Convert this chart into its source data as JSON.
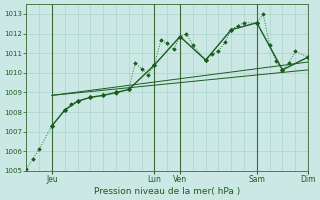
{
  "xlabel": "Pression niveau de la mer( hPa )",
  "bg_color": "#cce8e4",
  "grid_color": "#aad4cf",
  "line_dark": "#1a5c20",
  "line_mid": "#2a7a30",
  "ylim": [
    1005.0,
    1013.5
  ],
  "xlim": [
    0,
    44
  ],
  "yticks": [
    1005,
    1006,
    1007,
    1008,
    1009,
    1010,
    1011,
    1012,
    1013
  ],
  "xtick_pos": [
    4,
    20,
    24,
    36,
    44
  ],
  "xtick_labels": [
    "Jeu",
    "Lun",
    "Ven",
    "Sam",
    "Dim"
  ],
  "day_vline_pos": [
    4,
    20,
    24,
    36,
    44
  ],
  "grid_v_step": 2,
  "line1_style": "dotted_markers",
  "line1_x": [
    0,
    1,
    2,
    4,
    6,
    7,
    8,
    10,
    12,
    14,
    16,
    17,
    18,
    19,
    20,
    21,
    22,
    23,
    24,
    25,
    26,
    28,
    29,
    30,
    31,
    32,
    33,
    34,
    36,
    37,
    38,
    39,
    40,
    41,
    42,
    44
  ],
  "line1_y": [
    1005.1,
    1005.6,
    1006.1,
    1007.3,
    1008.1,
    1008.4,
    1008.55,
    1008.75,
    1008.85,
    1008.95,
    1009.15,
    1010.5,
    1010.2,
    1009.9,
    1010.4,
    1011.65,
    1011.5,
    1011.2,
    1011.85,
    1012.0,
    1011.4,
    1010.65,
    1010.95,
    1011.1,
    1011.55,
    1012.2,
    1012.4,
    1012.55,
    1012.55,
    1013.0,
    1011.4,
    1010.6,
    1010.15,
    1010.5,
    1011.1,
    1010.8
  ],
  "line2_x": [
    4,
    6,
    8,
    10,
    12,
    14,
    16,
    20,
    24,
    28,
    32,
    36,
    40,
    44
  ],
  "line2_y": [
    1007.3,
    1008.1,
    1008.55,
    1008.75,
    1008.85,
    1009.0,
    1009.15,
    1010.4,
    1011.85,
    1010.65,
    1012.2,
    1012.55,
    1010.15,
    1010.8
  ],
  "line3_x": [
    4,
    44
  ],
  "line3_y": [
    1008.85,
    1010.15
  ],
  "line4_x": [
    4,
    44
  ],
  "line4_y": [
    1008.85,
    1010.55
  ]
}
